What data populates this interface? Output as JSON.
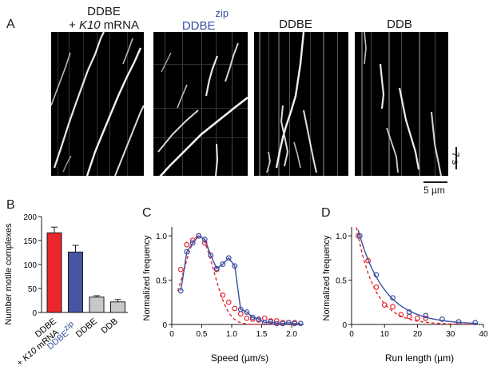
{
  "panels": {
    "a": "A",
    "b": "B",
    "c": "C",
    "d": "D"
  },
  "kymographs": {
    "titles": {
      "k1_line1": "DDBE",
      "k1_line2_prefix": "+ ",
      "k1_line2_italic": "K10",
      "k1_line2_suffix": " mRNA",
      "k2_main": "DDBE",
      "k2_sup": "zip",
      "k3": "DDBE",
      "k4": "DDB"
    },
    "time_scale_label": "7 s",
    "distance_scale_label": "5 µm"
  },
  "chart_data": [
    {
      "type": "bar",
      "ylabel": "Number motile complexes",
      "ylim": [
        0,
        200
      ],
      "yticks": [
        0,
        50,
        100,
        150,
        200
      ],
      "categories": [
        "DDBE + K10 mRNA",
        "DDBE zip",
        "DDBE",
        "DDB"
      ],
      "values": [
        166,
        126,
        32,
        22
      ],
      "errors": [
        12,
        14,
        3,
        5
      ],
      "colors": [
        "#e8262b",
        "#4655a4",
        "#c8c8c8",
        "#c8c8c8"
      ],
      "tick_labels": {
        "cat1_line1": "DDBE",
        "cat1_line2_prefix": "+ ",
        "cat1_line2_italic": "K10",
        "cat1_line2_suffix": " mRNA",
        "cat2_main": "DDBE",
        "cat2_sup": "zip",
        "cat3": "DDBE",
        "cat4": "DDB"
      }
    },
    {
      "type": "line",
      "xlabel": "Speed (µm/s)",
      "ylabel": "Normalized frequency",
      "xlim": [
        0,
        2.2
      ],
      "ylim": [
        0,
        1.1
      ],
      "xticks": [
        0,
        0.5,
        1.0,
        1.5,
        2.0
      ],
      "xtick_labels": [
        "0",
        "0.5",
        "1.0",
        "1.5",
        "2.0"
      ],
      "yticks": [
        0,
        0.5,
        1.0
      ],
      "ytick_labels": [
        "0",
        "0.5",
        "1.0"
      ],
      "series": [
        {
          "color": "#e8262b",
          "style": "dashed",
          "points": [
            [
              0.15,
              0.62
            ],
            [
              0.25,
              0.9
            ],
            [
              0.35,
              0.95
            ],
            [
              0.45,
              1.0
            ],
            [
              0.55,
              0.92
            ],
            [
              0.65,
              0.78
            ],
            [
              0.75,
              0.62
            ],
            [
              0.85,
              0.33
            ],
            [
              0.95,
              0.25
            ],
            [
              1.05,
              0.18
            ],
            [
              1.15,
              0.12
            ],
            [
              1.25,
              0.07
            ],
            [
              1.35,
              0.06
            ],
            [
              1.45,
              0.05
            ],
            [
              1.55,
              0.07
            ],
            [
              1.65,
              0.04
            ],
            [
              1.75,
              0.04
            ],
            [
              1.85,
              0.02
            ],
            [
              1.95,
              0.02
            ],
            [
              2.05,
              0.02
            ]
          ],
          "fit_peak": 0.45,
          "fit_sigma": 0.25
        },
        {
          "color": "#3a4fa3",
          "style": "solid",
          "points": [
            [
              0.15,
              0.38
            ],
            [
              0.25,
              0.82
            ],
            [
              0.35,
              0.92
            ],
            [
              0.45,
              1.0
            ],
            [
              0.55,
              0.96
            ],
            [
              0.65,
              0.78
            ],
            [
              0.75,
              0.63
            ],
            [
              0.85,
              0.68
            ],
            [
              0.95,
              0.75
            ],
            [
              1.05,
              0.66
            ],
            [
              1.15,
              0.17
            ],
            [
              1.25,
              0.14
            ],
            [
              1.35,
              0.08
            ],
            [
              1.45,
              0.06
            ],
            [
              1.55,
              0.02
            ],
            [
              1.65,
              0.03
            ],
            [
              1.75,
              0.01
            ],
            [
              1.85,
              0.01
            ],
            [
              1.95,
              0.02
            ],
            [
              2.05,
              0.01
            ],
            [
              2.15,
              0.01
            ]
          ]
        }
      ]
    },
    {
      "type": "line",
      "xlabel": "Run length (µm)",
      "ylabel": "Normalized frequency",
      "xlim": [
        0,
        40
      ],
      "ylim": [
        0,
        1.1
      ],
      "xticks": [
        0,
        10,
        20,
        30,
        40
      ],
      "xtick_labels": [
        "0",
        "10",
        "20",
        "30",
        "40"
      ],
      "yticks": [
        0,
        0.5,
        1.0
      ],
      "ytick_labels": [
        "0",
        "0.5",
        "1.0"
      ],
      "series": [
        {
          "color": "#e8262b",
          "style": "dashed",
          "points": [
            [
              2,
              1.0
            ],
            [
              5,
              0.72
            ],
            [
              7.5,
              0.42
            ],
            [
              10,
              0.22
            ],
            [
              12.5,
              0.2
            ],
            [
              15,
              0.11
            ],
            [
              17.5,
              0.09
            ],
            [
              20,
              0.07
            ],
            [
              22.5,
              0.07
            ]
          ],
          "fit_decay": 5.5,
          "fit_x0": 2
        },
        {
          "color": "#3a4fa3",
          "style": "solid",
          "points": [
            [
              2.5,
              1.0
            ],
            [
              7.5,
              0.56
            ],
            [
              12.5,
              0.3
            ],
            [
              17.5,
              0.14
            ],
            [
              22.5,
              0.1
            ],
            [
              27.5,
              0.06
            ],
            [
              32.5,
              0.03
            ],
            [
              37.5,
              0.02
            ]
          ],
          "fit_decay": 8.0,
          "fit_x0": 2.5
        }
      ]
    }
  ]
}
